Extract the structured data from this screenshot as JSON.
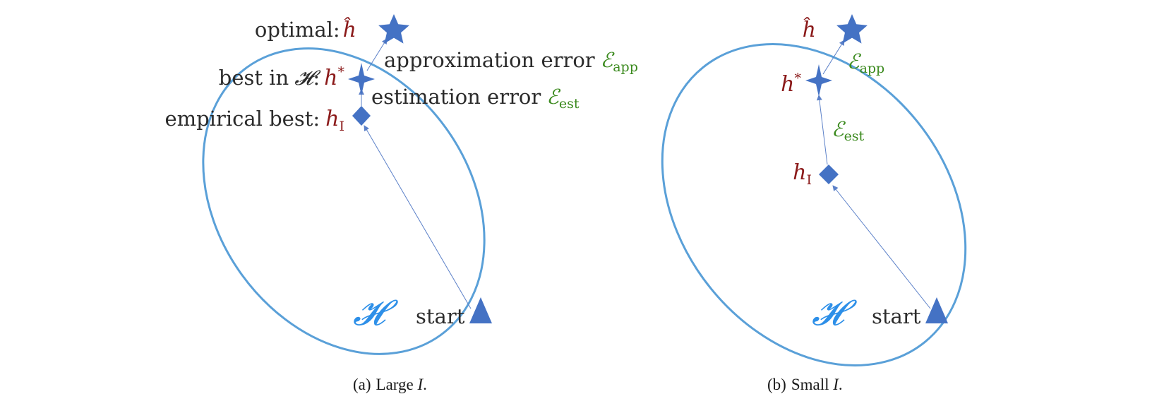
{
  "colors": {
    "ellipse": "#5aa0d8",
    "marker": "#4472c4",
    "arrow": "#5b80c8",
    "math": "#8b1a1a",
    "error": "#3b8a1e",
    "hypothesis_space": "#2d8fe8",
    "text": "#2b2b2b"
  },
  "panel_a": {
    "optimal_label": "optimal:",
    "h_hat": "ĥ",
    "approx_error_label": "approximation error",
    "best_label": "best in",
    "best_space": "𝓗",
    "best_colon": ":",
    "h_star": "h",
    "star_sup": "*",
    "estimation_error_label": "estimation error",
    "empirical_label": "empirical best:",
    "h_I": "h",
    "I_sub": "I",
    "error_symbol": "ℰ",
    "app_sub": "app",
    "est_sub": "est",
    "space_symbol": "𝓗",
    "start_label": "start",
    "caption_prefix": "(a)",
    "caption_text": "Large ",
    "caption_var": "I",
    "caption_end": "."
  },
  "panel_b": {
    "h_hat": "ĥ",
    "h_star": "h",
    "star_sup": "*",
    "h_I": "h",
    "I_sub": "I",
    "error_symbol": "ℰ",
    "app_sub": "app",
    "est_sub": "est",
    "space_symbol": "𝓗",
    "start_label": "start",
    "caption_prefix": "(b)",
    "caption_text": "Small ",
    "caption_var": "I",
    "caption_end": "."
  }
}
